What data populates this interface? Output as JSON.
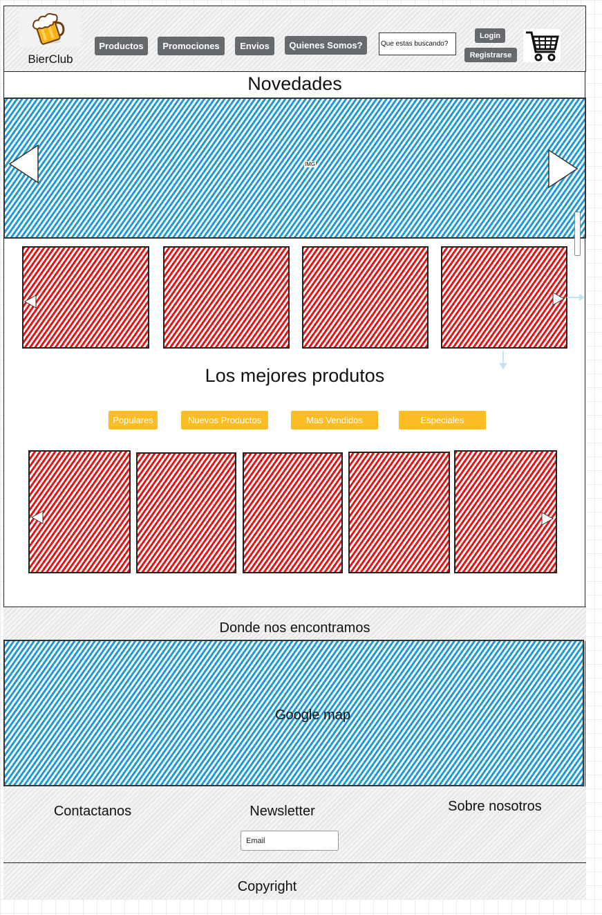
{
  "header": {
    "brand": "BierClub",
    "nav": [
      "Productos",
      "Promociones",
      "Envios",
      "Quienes Somos?"
    ],
    "search_placeholder": "Que estas buscando?",
    "login_label": "Login",
    "register_label": "Registrarse"
  },
  "novedades": {
    "title": "Novedades",
    "image_label": "IMG"
  },
  "mejores": {
    "title": "Los mejores produtos",
    "tabs": [
      "Populares",
      "Nuevos Productos",
      "Mas Vendidos",
      "Especiales"
    ]
  },
  "location": {
    "title": "Donde nos encontramos",
    "map_label": "Google map"
  },
  "footer": {
    "contact": "Contactanos",
    "newsletter": "Newsletter",
    "about": "Sobre nosotros",
    "email_placeholder": "Email",
    "copyright": "Copyright"
  },
  "colors": {
    "nav_button": "#666a6e",
    "tab_button": "#fcbc24",
    "image_hatch": "#1c9ad8",
    "product_hatch": "#ee1010"
  },
  "icons": {
    "logo": "beer-mug-icon",
    "cart": "shopping-cart-icon"
  }
}
